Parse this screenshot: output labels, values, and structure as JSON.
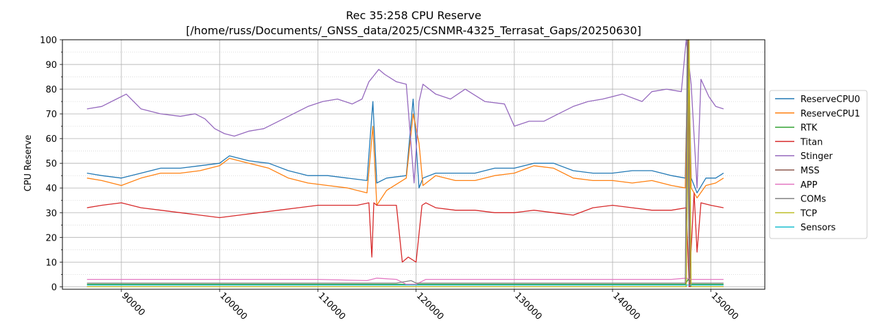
{
  "chart_data": {
    "type": "line",
    "title_line1": "Rec 35:258 CPU Reserve",
    "title_line2": "[/home/russ/Documents/_GNSS_data/2025/CSNMR-4325_Terrasat_Gaps/20250630]",
    "xlabel": "",
    "ylabel": "CPU Reserve",
    "xlim": [
      84000,
      155500
    ],
    "ylim": [
      -1,
      100
    ],
    "xticks": [
      90000,
      100000,
      110000,
      120000,
      130000,
      140000,
      150000
    ],
    "yticks": [
      0,
      10,
      20,
      30,
      40,
      50,
      60,
      70,
      80,
      90,
      100
    ],
    "yminor_step": 5,
    "grid": true,
    "legend_position": "right",
    "series": [
      {
        "name": "ReserveCPU0",
        "color": "#1f77b4",
        "x": [
          86500,
          88000,
          90000,
          92000,
          94000,
          96000,
          98000,
          100000,
          101000,
          103000,
          105000,
          107000,
          109000,
          111000,
          113000,
          115000,
          115600,
          116000,
          117000,
          119000,
          119700,
          120300,
          120700,
          122000,
          124000,
          126000,
          128000,
          130000,
          132000,
          134000,
          136000,
          138000,
          140000,
          142000,
          144000,
          146000,
          147400,
          147700,
          148000,
          148600,
          149500,
          150500,
          151300
        ],
        "y": [
          46,
          45,
          44,
          46,
          48,
          48,
          49,
          50,
          53,
          51,
          50,
          47,
          45,
          45,
          44,
          43,
          75,
          42,
          44,
          45,
          76,
          40,
          44,
          46,
          46,
          46,
          48,
          48,
          50,
          50,
          47,
          46,
          46,
          47,
          47,
          45,
          44,
          100,
          44,
          38,
          44,
          44,
          46
        ]
      },
      {
        "name": "ReserveCPU1",
        "color": "#ff7f0e",
        "x": [
          86500,
          88000,
          90000,
          92000,
          94000,
          96000,
          98000,
          100000,
          101000,
          103000,
          105000,
          107000,
          109000,
          111000,
          113000,
          115000,
          115600,
          116000,
          117000,
          119000,
          119700,
          120300,
          120700,
          122000,
          124000,
          126000,
          128000,
          130000,
          132000,
          134000,
          136000,
          138000,
          140000,
          142000,
          144000,
          146000,
          147400,
          147700,
          148000,
          148600,
          149500,
          150500,
          151300
        ],
        "y": [
          44,
          43,
          41,
          44,
          46,
          46,
          47,
          49,
          52,
          50,
          48,
          44,
          42,
          41,
          40,
          38,
          65,
          33,
          39,
          44,
          70,
          58,
          41,
          45,
          43,
          43,
          45,
          46,
          49,
          48,
          44,
          43,
          43,
          42,
          43,
          41,
          40,
          100,
          40,
          36,
          41,
          42,
          44
        ]
      },
      {
        "name": "RTK",
        "color": "#2ca02c",
        "x": [
          86500,
          100000,
          115000,
          120000,
          135000,
          147400,
          147700,
          148000,
          151300
        ],
        "y": [
          1,
          1,
          1,
          1,
          1,
          1,
          3,
          1,
          1
        ]
      },
      {
        "name": "Titan",
        "color": "#d62728",
        "x": [
          86500,
          88000,
          90000,
          92000,
          94000,
          96000,
          98000,
          100000,
          102000,
          104000,
          106000,
          108000,
          110000,
          112000,
          114000,
          115200,
          115500,
          115700,
          116000,
          118000,
          118600,
          119200,
          120000,
          120600,
          121000,
          122000,
          124000,
          126000,
          128000,
          130000,
          132000,
          134000,
          136000,
          138000,
          140000,
          142000,
          144000,
          146000,
          147500,
          147800,
          148300,
          148600,
          149000,
          150000,
          151300
        ],
        "y": [
          32,
          33,
          34,
          32,
          31,
          30,
          29,
          28,
          29,
          30,
          31,
          32,
          33,
          33,
          33,
          34,
          12,
          34,
          33,
          33,
          10,
          12,
          10,
          33,
          34,
          32,
          31,
          31,
          30,
          30,
          31,
          30,
          29,
          32,
          33,
          32,
          31,
          31,
          32,
          0,
          38,
          14,
          34,
          33,
          32
        ]
      },
      {
        "name": "Stinger",
        "color": "#9467bd",
        "x": [
          86500,
          88000,
          89500,
          90500,
          92000,
          94000,
          96000,
          97500,
          98500,
          99500,
          100500,
          101500,
          103000,
          104500,
          106000,
          107500,
          109000,
          110500,
          112000,
          113500,
          114500,
          115200,
          115600,
          116200,
          116800,
          118000,
          119000,
          119800,
          120300,
          120700,
          122000,
          123500,
          125000,
          127000,
          129000,
          130000,
          131500,
          133000,
          134500,
          136000,
          137500,
          139000,
          141000,
          143000,
          144000,
          145500,
          147000,
          147500,
          148000,
          148600,
          149000,
          149800,
          150500,
          151300
        ],
        "y": [
          72,
          73,
          76,
          78,
          72,
          70,
          69,
          70,
          68,
          64,
          62,
          61,
          63,
          64,
          67,
          70,
          73,
          75,
          76,
          74,
          76,
          83,
          85,
          88,
          86,
          83,
          82,
          42,
          75,
          82,
          78,
          76,
          80,
          75,
          74,
          65,
          67,
          67,
          70,
          73,
          75,
          76,
          78,
          75,
          79,
          80,
          79,
          100,
          82,
          40,
          84,
          77,
          73,
          72
        ]
      },
      {
        "name": "MSS",
        "color": "#8c564b",
        "x": [
          86500,
          120000,
          147500,
          147700,
          147900,
          151300
        ],
        "y": [
          0,
          0,
          0,
          100,
          0,
          0
        ]
      },
      {
        "name": "APP",
        "color": "#e377c2",
        "x": [
          86500,
          90000,
          100000,
          110000,
          115000,
          116000,
          118000,
          119000,
          120000,
          121000,
          130000,
          140000,
          146000,
          147500,
          148000,
          150000,
          151300
        ],
        "y": [
          3,
          3,
          3,
          3,
          2.5,
          3.5,
          3,
          1,
          1,
          3,
          3,
          3,
          3,
          3.5,
          3,
          3,
          3
        ]
      },
      {
        "name": "COMs",
        "color": "#7f7f7f",
        "x": [
          86500,
          100000,
          115000,
          118000,
          119500,
          120000,
          121000,
          135000,
          147400,
          147600,
          147800,
          151300
        ],
        "y": [
          1.5,
          1.5,
          1.5,
          1.5,
          2.5,
          1.5,
          1.5,
          1.5,
          1.5,
          100,
          1.5,
          1.5
        ]
      },
      {
        "name": "TCP",
        "color": "#bcbd22",
        "x": [
          86500,
          100000,
          120000,
          147500,
          147800,
          148000,
          151300
        ],
        "y": [
          0,
          0,
          0,
          0,
          100,
          0,
          0
        ]
      },
      {
        "name": "Sensors",
        "color": "#17becf",
        "x": [
          86500,
          110000,
          130000,
          151300
        ],
        "y": [
          0.7,
          0.7,
          0.7,
          0.7
        ]
      }
    ]
  }
}
